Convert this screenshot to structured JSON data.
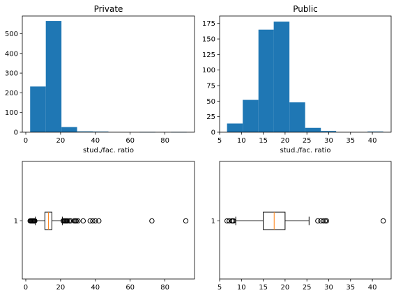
{
  "chart_data": [
    {
      "type": "bar",
      "subtype": "histogram",
      "title": "Private",
      "xlabel": "stud./fac. ratio",
      "ylabel": "",
      "color": "#1f77b4",
      "bin_edges": [
        2.5,
        11.5,
        20.5,
        29.5,
        38.5,
        47.5,
        56.5,
        65.5,
        74.5,
        83.5,
        92.5
      ],
      "counts": [
        232,
        565,
        26,
        4,
        3,
        0,
        0,
        1,
        0,
        1
      ],
      "xlim": [
        -2,
        97
      ],
      "ylim": [
        0,
        590
      ],
      "xticks": [
        0,
        20,
        40,
        60,
        80
      ],
      "yticks": [
        0,
        100,
        200,
        300,
        400,
        500
      ]
    },
    {
      "type": "bar",
      "subtype": "histogram",
      "title": "Public",
      "xlabel": "stud./fac. ratio",
      "ylabel": "",
      "color": "#1f77b4",
      "bin_edges": [
        6.7,
        10.3,
        13.9,
        17.4,
        21.0,
        24.6,
        28.2,
        31.7,
        35.3,
        38.9,
        42.5
      ],
      "counts": [
        14,
        52,
        165,
        178,
        48,
        7,
        2,
        0,
        0,
        1
      ],
      "xlim": [
        5,
        44.3
      ],
      "ylim": [
        0,
        187
      ],
      "xticks": [
        5,
        10,
        15,
        20,
        25,
        30,
        35,
        40
      ],
      "yticks": [
        0,
        25,
        50,
        75,
        100,
        125,
        150,
        175
      ]
    },
    {
      "type": "box",
      "orient": "horizontal",
      "category": "1",
      "q1": 11.0,
      "median": 13.0,
      "q3": 15.0,
      "whisker_low": 5.5,
      "whisker_high": 21.0,
      "outliers": [
        2.5,
        2.9,
        3.3,
        3.7,
        4.1,
        4.5,
        4.9,
        5.2,
        21.5,
        22.0,
        22.5,
        23.0,
        23.5,
        24.0,
        25.0,
        25.7,
        27.8,
        28.5,
        29.0,
        30.0,
        33.0,
        37.0,
        38.5,
        40.0,
        42.0,
        72.5,
        92.0
      ],
      "xlim": [
        -2,
        97
      ],
      "xticks": [
        0,
        20,
        40,
        60,
        80
      ]
    },
    {
      "type": "box",
      "orient": "horizontal",
      "category": "1",
      "q1": 15.0,
      "median": 17.5,
      "q3": 20.0,
      "whisker_low": 8.7,
      "whisker_high": 25.5,
      "outliers": [
        6.7,
        7.2,
        7.8,
        8.0,
        8.2,
        27.5,
        28.2,
        28.8,
        29.2,
        29.5,
        42.5
      ],
      "xlim": [
        5,
        44.3
      ],
      "xticks": [
        5,
        10,
        15,
        20,
        25,
        30,
        35,
        40
      ]
    }
  ]
}
